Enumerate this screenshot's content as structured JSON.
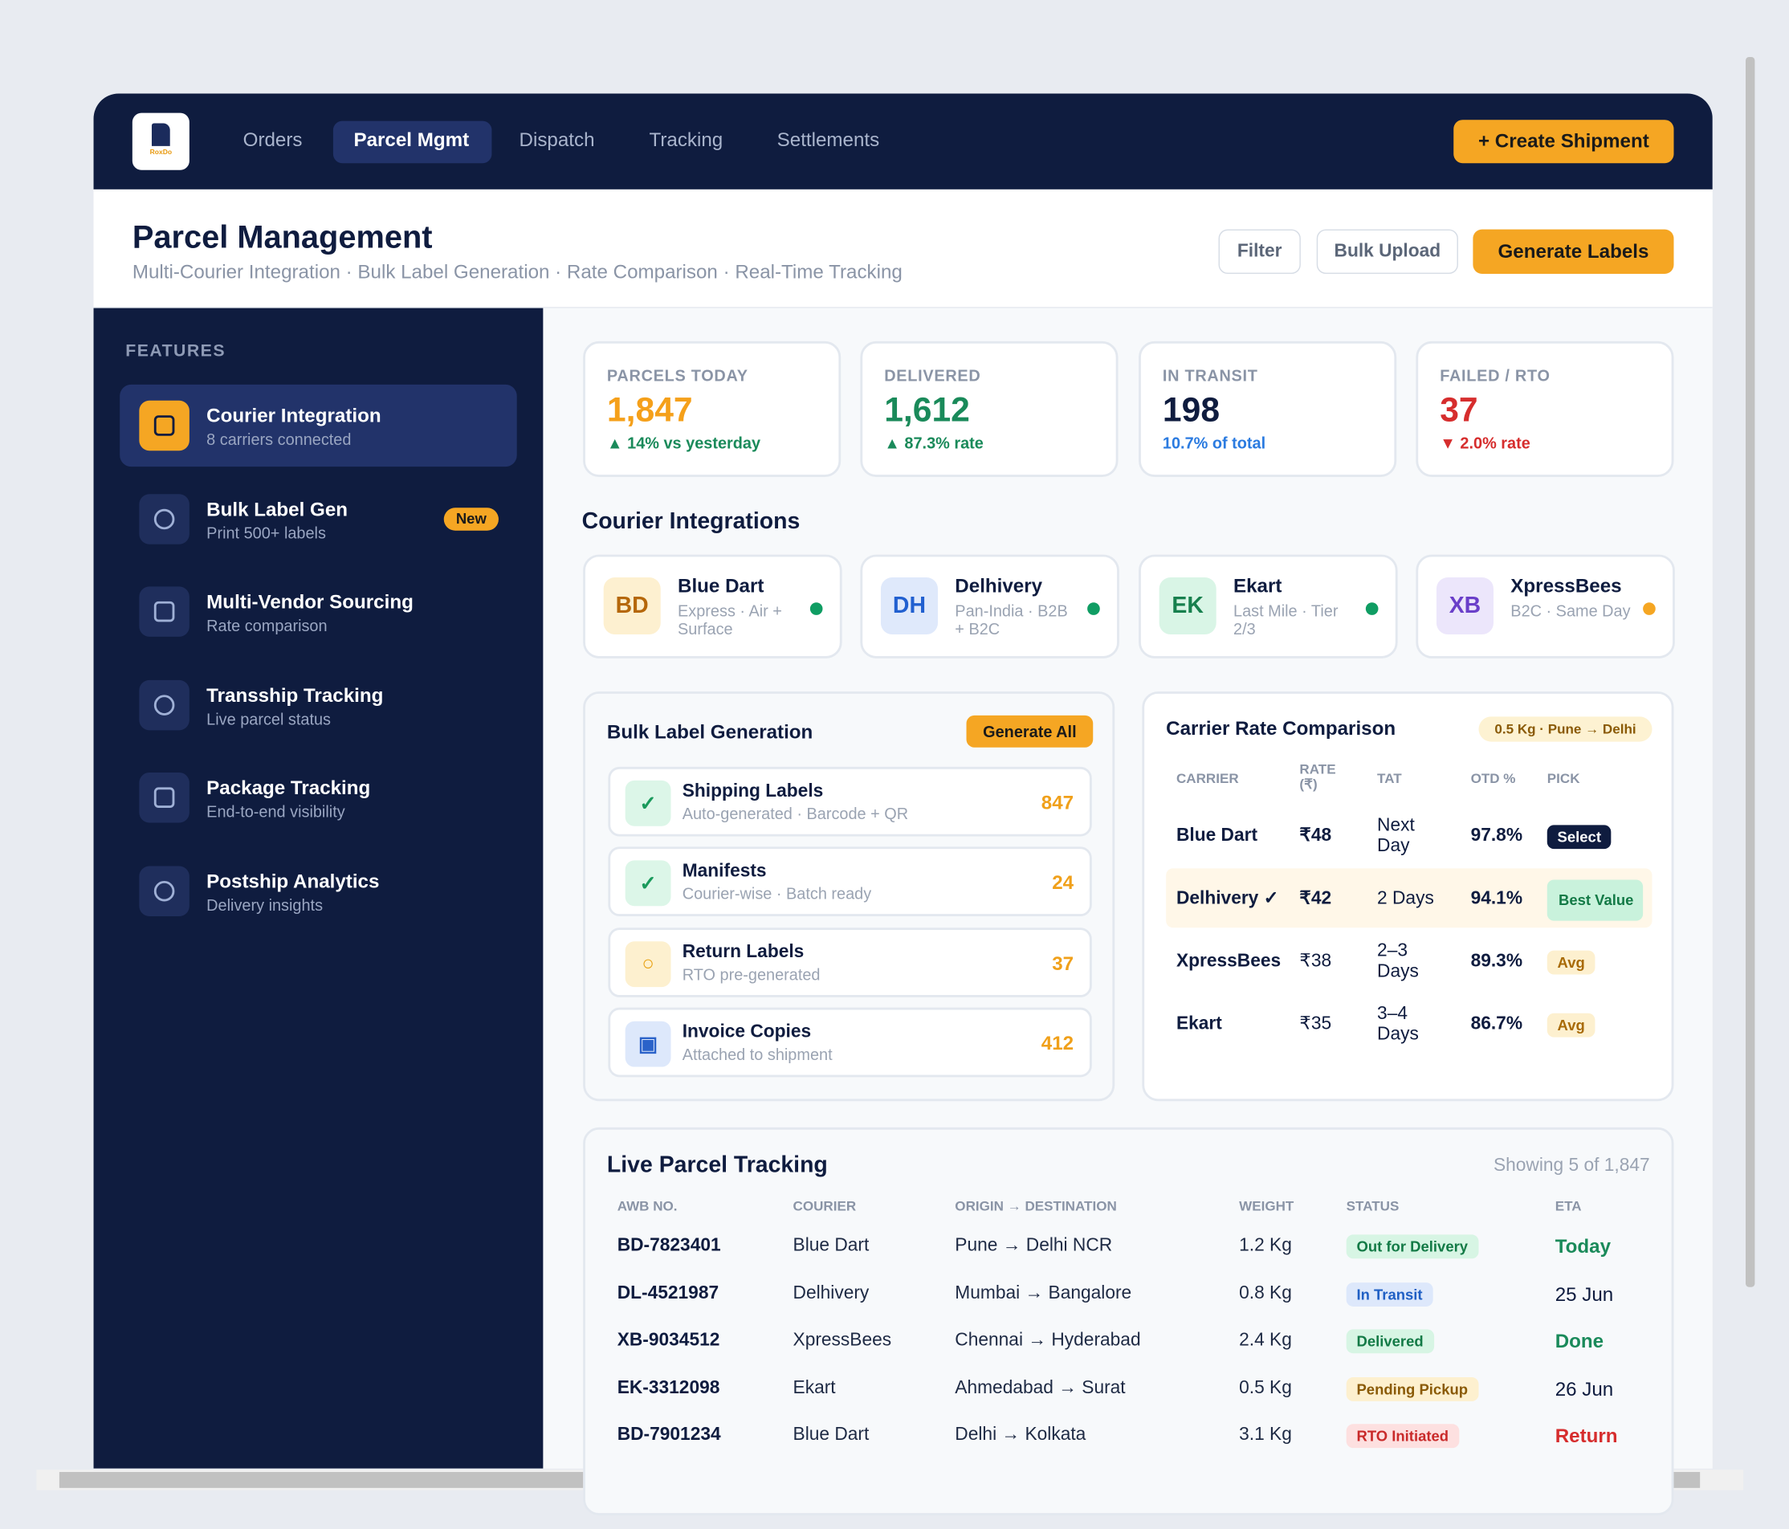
{
  "nav": {
    "logo": "RoxDo",
    "items": [
      "Orders",
      "Parcel Mgmt",
      "Dispatch",
      "Tracking",
      "Settlements"
    ],
    "cta": "+ Create Shipment"
  },
  "header": {
    "title": "Parcel Management",
    "subtitle": "Multi-Courier Integration · Bulk Label Generation · Rate Comparison · Real-Time Tracking",
    "buttons": [
      "Filter",
      "Bulk Upload",
      "Generate Labels"
    ]
  },
  "sidebar": {
    "heading": "FEATURES",
    "items": [
      {
        "title": "Courier Integration",
        "sub": "8 carriers connected"
      },
      {
        "title": "Bulk Label Gen",
        "sub": "Print 500+ labels",
        "badge": "New"
      },
      {
        "title": "Multi-Vendor Sourcing",
        "sub": "Rate comparison"
      },
      {
        "title": "Transship Tracking",
        "sub": "Live parcel status"
      },
      {
        "title": "Package Tracking",
        "sub": "End-to-end visibility"
      },
      {
        "title": "Postship Analytics",
        "sub": "Delivery insights"
      }
    ]
  },
  "stats": [
    {
      "label": "PARCELS TODAY",
      "value": "1,847",
      "note": "▲ 14% vs yesterday"
    },
    {
      "label": "DELIVERED",
      "value": "1,612",
      "note": "▲ 87.3% rate"
    },
    {
      "label": "IN TRANSIT",
      "value": "198",
      "note": "10.7% of total"
    },
    {
      "label": "FAILED / RTO",
      "value": "37",
      "note": "▼ 2.0% rate"
    }
  ],
  "couriers": {
    "title": "Courier Integrations",
    "items": [
      {
        "abbr": "BD",
        "name": "Blue Dart",
        "desc": "Express · Air + Surface"
      },
      {
        "abbr": "DH",
        "name": "Delhivery",
        "desc": "Pan-India · B2B + B2C"
      },
      {
        "abbr": "EK",
        "name": "Ekart",
        "desc": "Last Mile · Tier 2/3"
      },
      {
        "abbr": "XB",
        "name": "XpressBees",
        "desc": "B2C · Same Day"
      }
    ]
  },
  "bulk": {
    "title": "Bulk Label Generation",
    "button": "Generate All",
    "items": [
      {
        "title": "Shipping Labels",
        "sub": "Auto-generated · Barcode + QR",
        "count": "847"
      },
      {
        "title": "Manifests",
        "sub": "Courier-wise · Batch ready",
        "count": "24"
      },
      {
        "title": "Return Labels",
        "sub": "RTO pre-generated",
        "count": "37"
      },
      {
        "title": "Invoice Copies",
        "sub": "Attached to shipment",
        "count": "412"
      }
    ]
  },
  "rates": {
    "title": "Carrier Rate Comparison",
    "tag": "0.5 Kg · Pune → Delhi",
    "columns": [
      "CARRIER",
      "RATE (₹)",
      "TAT",
      "OTD %",
      "PICK"
    ],
    "rows": [
      [
        "Blue Dart",
        "₹48",
        "Next Day",
        "97.8%",
        "Select"
      ],
      [
        "Delhivery ✓",
        "₹42",
        "2 Days",
        "94.1%",
        "Best Value"
      ],
      [
        "XpressBees",
        "₹38",
        "2–3 Days",
        "89.3%",
        "Avg"
      ],
      [
        "Ekart",
        "₹35",
        "3–4 Days",
        "86.7%",
        "Avg"
      ]
    ]
  },
  "tracking": {
    "title": "Live Parcel Tracking",
    "count": "Showing 5 of 1,847",
    "columns": [
      "AWB NO.",
      "COURIER",
      "ORIGIN → DESTINATION",
      "WEIGHT",
      "STATUS",
      "ETA"
    ],
    "rows": [
      [
        "BD-7823401",
        "Blue Dart",
        "Pune → Delhi NCR",
        "1.2 Kg",
        "Out for Delivery",
        "Today"
      ],
      [
        "DL-4521987",
        "Delhivery",
        "Mumbai → Bangalore",
        "0.8 Kg",
        "In Transit",
        "25 Jun"
      ],
      [
        "XB-9034512",
        "XpressBees",
        "Chennai → Hyderabad",
        "2.4 Kg",
        "Delivered",
        "Done"
      ],
      [
        "EK-3312098",
        "Ekart",
        "Ahmedabad → Surat",
        "0.5 Kg",
        "Pending Pickup",
        "26 Jun"
      ],
      [
        "BD-7901234",
        "Blue Dart",
        "Delhi → Kolkata",
        "3.1 Kg",
        "RTO Initiated",
        "Return"
      ]
    ]
  }
}
